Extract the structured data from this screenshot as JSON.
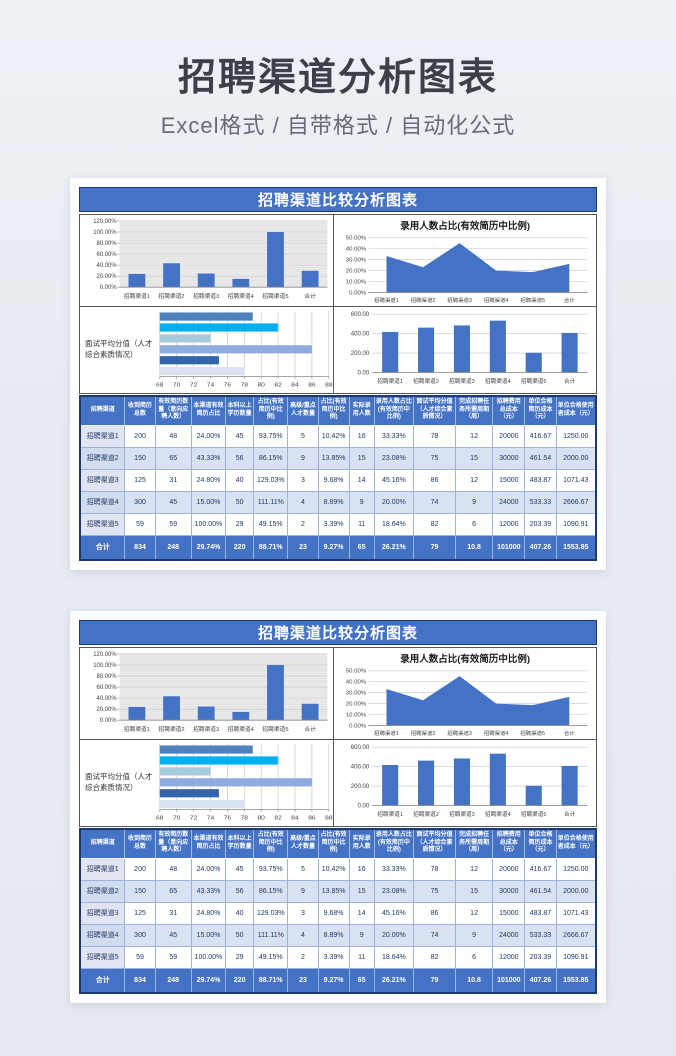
{
  "header": {
    "title": "招聘渠道分析图表",
    "subtitle": "Excel格式 / 自带格式 / 自动化公式"
  },
  "panel_count": 2,
  "panel": {
    "title": "招聘渠道比较分析图表",
    "area_chart_title": "录用人数占比(有效简历中比例)",
    "hbar_label": "面试平均分值（人才综合素质情况）"
  },
  "colors": {
    "accent_blue": "#4472c4",
    "table_alt_row": "#d9e2f3",
    "title_bar_border": "#1d3a6e",
    "hbar_palette_by_category": {
      "招聘渠道1": "#d9e2f3",
      "招聘渠道2": "#3465ac",
      "招聘渠道3": "#8faadc",
      "招聘渠道4": "#a6cbdd",
      "招聘渠道5": "#00b0f0",
      "合计": "#4f81bd"
    }
  },
  "chart_data": [
    {
      "id": "effective-resume-share",
      "type": "bar",
      "title": "",
      "categories": [
        "招聘渠道1",
        "招聘渠道2",
        "招聘渠道3",
        "招聘渠道4",
        "招聘渠道5",
        "合计"
      ],
      "values": [
        24.0,
        43.33,
        24.8,
        15.0,
        100.0,
        29.74
      ],
      "ylim": [
        0,
        120
      ],
      "yticks": [
        "0.00%",
        "20.00%",
        "40.00%",
        "60.00%",
        "80.00%",
        "100.00%",
        "120.00%"
      ],
      "grid": true,
      "plot_background": "striped-gray",
      "color": "#4472c4"
    },
    {
      "id": "hired-share-area",
      "type": "area",
      "title": "录用人数占比(有效简历中比例)",
      "categories": [
        "招聘渠道1",
        "招聘渠道2",
        "招聘渠道3",
        "招聘渠道4",
        "招聘渠道5",
        "合计"
      ],
      "values": [
        33.33,
        23.08,
        45.16,
        20.0,
        18.64,
        26.21
      ],
      "ylim": [
        0,
        50
      ],
      "yticks": [
        "0.00%",
        "10.00%",
        "20.00%",
        "30.00%",
        "40.00%",
        "50.00%"
      ],
      "grid": true,
      "color": "#4472c4"
    },
    {
      "id": "interview-average-score",
      "type": "hbar",
      "title": "",
      "axis_label": "面试平均分值（人才综合素质情况）",
      "categories": [
        "招聘渠道1",
        "招聘渠道2",
        "招聘渠道3",
        "招聘渠道4",
        "招聘渠道5",
        "合计"
      ],
      "values": [
        78,
        75,
        86,
        74,
        82,
        79
      ],
      "display_order": "first-category-at-bottom",
      "xlim": [
        68,
        88
      ],
      "xticks": [
        "68",
        "70",
        "72",
        "74",
        "76",
        "78",
        "80",
        "82",
        "84",
        "86",
        "88"
      ],
      "grid": true,
      "bar_colors": [
        "#d9e2f3",
        "#3465ac",
        "#8faadc",
        "#a6cbdd",
        "#00b0f0",
        "#4f81bd"
      ]
    },
    {
      "id": "recruit-unit-cost",
      "type": "bar",
      "title": "",
      "categories": [
        "招聘渠道1",
        "招聘渠道2",
        "招聘渠道3",
        "招聘渠道4",
        "招聘渠道5",
        "合计"
      ],
      "values": [
        416.67,
        461.54,
        483.87,
        533.33,
        203.39,
        407.26
      ],
      "ylim": [
        0,
        600
      ],
      "yticks": [
        "0.00",
        "200.00",
        "400.00",
        "600.00"
      ],
      "grid": true,
      "color": "#4472c4"
    }
  ],
  "table": {
    "headers": [
      "招聘渠道",
      "收到简历总数",
      "有效简历数量（意向应聘人数）",
      "本渠道有效简历占比",
      "本科以上学历数量",
      "占比(有效简历中比例)",
      "高级/重点人才数量",
      "占比(有效简历中比例)",
      "实际录用人数",
      "录用人数占比(有效简历中比例)",
      "面试平均分值（人才综合素质情况）",
      "完成招聘任务所需周期（周）",
      "招聘费用总成本（元）",
      "单位合格简历成本（元）",
      "单位合格使用者成本（元）"
    ],
    "rows": [
      [
        "招聘渠道1",
        "200",
        "48",
        "24.00%",
        "45",
        "93.75%",
        "5",
        "10.42%",
        "16",
        "33.33%",
        "78",
        "12",
        "20000",
        "416.67",
        "1250.00"
      ],
      [
        "招聘渠道2",
        "150",
        "65",
        "43.33%",
        "56",
        "86.15%",
        "9",
        "13.85%",
        "15",
        "23.08%",
        "75",
        "15",
        "30000",
        "461.54",
        "2000.00"
      ],
      [
        "招聘渠道3",
        "125",
        "31",
        "24.80%",
        "40",
        "129.03%",
        "3",
        "9.68%",
        "14",
        "45.16%",
        "86",
        "12",
        "15000",
        "483.87",
        "1071.43"
      ],
      [
        "招聘渠道4",
        "300",
        "45",
        "15.00%",
        "50",
        "111.11%",
        "4",
        "8.89%",
        "9",
        "20.00%",
        "74",
        "9",
        "24000",
        "533.33",
        "2666.67"
      ],
      [
        "招聘渠道5",
        "59",
        "59",
        "100.00%",
        "29",
        "49.15%",
        "2",
        "3.39%",
        "11",
        "18.64%",
        "82",
        "6",
        "12000",
        "203.39",
        "1090.91"
      ]
    ],
    "total_row": [
      "合计",
      "834",
      "248",
      "29.74%",
      "220",
      "88.71%",
      "23",
      "9.27%",
      "65",
      "26.21%",
      "79",
      "10.8",
      "101000",
      "407.26",
      "1553.85"
    ]
  }
}
